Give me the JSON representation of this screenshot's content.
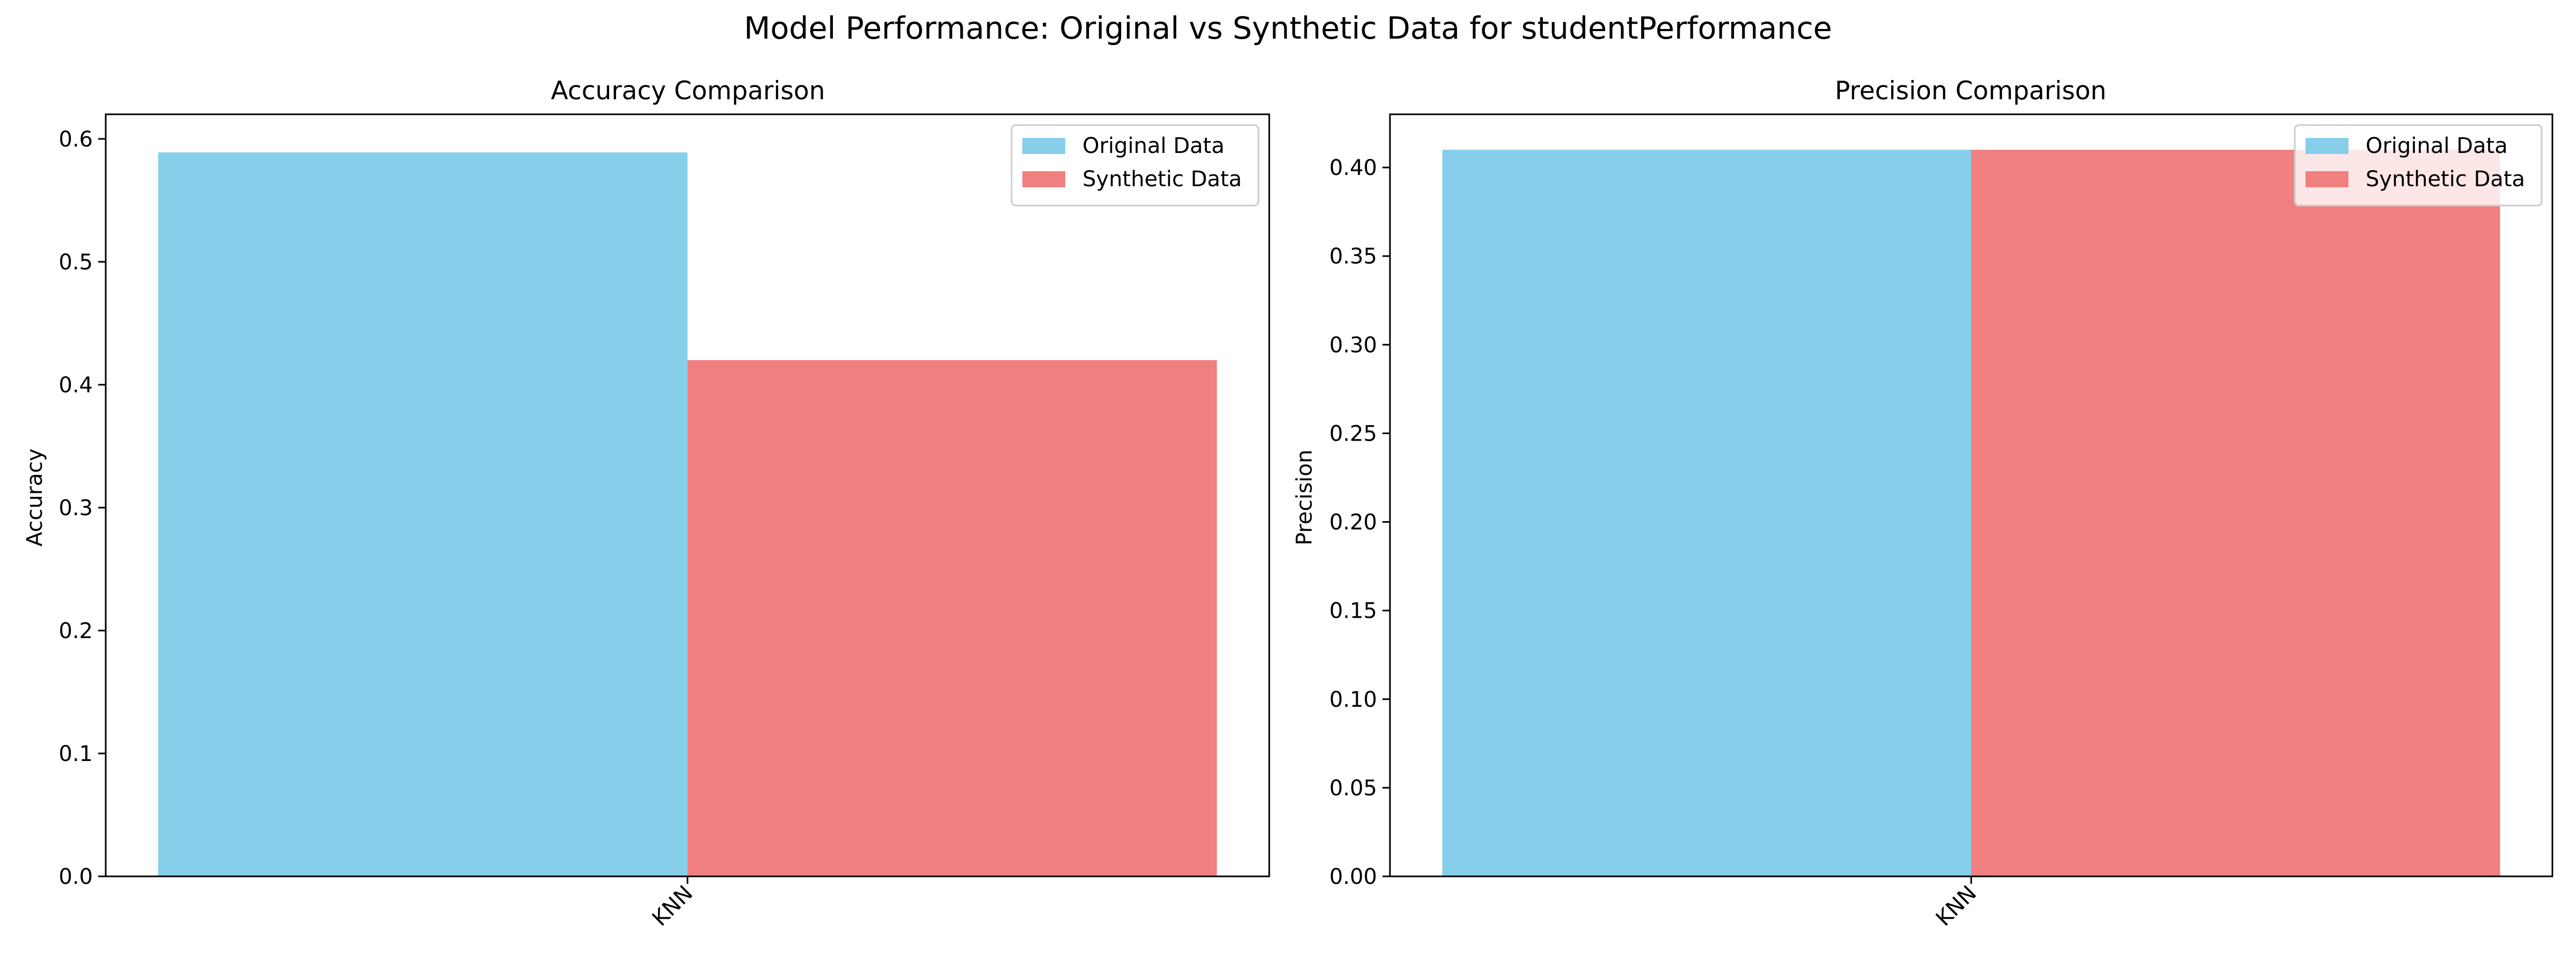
{
  "figure": {
    "title": "Model Performance: Original vs Synthetic Data for studentPerformance"
  },
  "chart_data": [
    {
      "type": "bar",
      "title": "Accuracy Comparison",
      "xlabel": "",
      "ylabel": "Accuracy",
      "categories": [
        "KNN"
      ],
      "series": [
        {
          "name": "Original Data",
          "values": [
            0.589
          ],
          "color": "#87CEEB"
        },
        {
          "name": "Synthetic Data",
          "values": [
            0.42
          ],
          "color": "#F08080"
        }
      ],
      "ylim": [
        0,
        0.62
      ],
      "yticks": [
        "0.0",
        "0.1",
        "0.2",
        "0.3",
        "0.4",
        "0.5",
        "0.6"
      ],
      "ytick_values": [
        0,
        0.1,
        0.2,
        0.3,
        0.4,
        0.5,
        0.6
      ],
      "grid": false,
      "legend": "top-right"
    },
    {
      "type": "bar",
      "title": "Precision Comparison",
      "xlabel": "",
      "ylabel": "Precision",
      "categories": [
        "KNN"
      ],
      "series": [
        {
          "name": "Original Data",
          "values": [
            0.41
          ],
          "color": "#87CEEB"
        },
        {
          "name": "Synthetic Data",
          "values": [
            0.41
          ],
          "color": "#F08080"
        }
      ],
      "ylim": [
        0,
        0.43
      ],
      "yticks": [
        "0.00",
        "0.05",
        "0.10",
        "0.15",
        "0.20",
        "0.25",
        "0.30",
        "0.35",
        "0.40"
      ],
      "ytick_values": [
        0,
        0.05,
        0.1,
        0.15,
        0.2,
        0.25,
        0.3,
        0.35,
        0.4
      ],
      "grid": false,
      "legend": "top-right"
    }
  ]
}
